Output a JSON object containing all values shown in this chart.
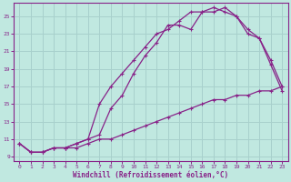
{
  "xlabel": "Windchill (Refroidissement éolien,°C)",
  "bg_color": "#c0e8e0",
  "grid_color": "#a8d0cc",
  "line_color": "#882288",
  "xlim": [
    -0.5,
    23.5
  ],
  "ylim": [
    8.5,
    26.5
  ],
  "xticks": [
    0,
    1,
    2,
    3,
    4,
    5,
    6,
    7,
    8,
    9,
    10,
    11,
    12,
    13,
    14,
    15,
    16,
    17,
    18,
    19,
    20,
    21,
    22,
    23
  ],
  "yticks": [
    9,
    11,
    13,
    15,
    17,
    19,
    21,
    23,
    25
  ],
  "curve1_x": [
    0,
    1,
    2,
    3,
    4,
    5,
    6,
    7,
    8,
    9,
    10,
    11,
    12,
    13,
    14,
    15,
    16,
    17,
    18,
    19,
    20,
    21,
    22,
    23
  ],
  "curve1_y": [
    10.5,
    9.5,
    9.5,
    10.0,
    10.0,
    10.0,
    10.5,
    11.0,
    11.0,
    11.5,
    12.0,
    12.5,
    13.0,
    13.5,
    14.0,
    14.5,
    15.0,
    15.5,
    15.5,
    16.0,
    16.0,
    16.5,
    16.5,
    17.0
  ],
  "curve2_x": [
    0,
    1,
    2,
    3,
    4,
    5,
    6,
    7,
    8,
    9,
    10,
    11,
    12,
    13,
    14,
    15,
    16,
    17,
    18,
    19,
    20,
    21,
    22,
    23
  ],
  "curve2_y": [
    10.5,
    9.5,
    9.5,
    10.0,
    10.0,
    10.5,
    11.0,
    11.5,
    14.5,
    16.0,
    18.5,
    20.5,
    22.0,
    24.0,
    24.0,
    23.5,
    25.5,
    25.5,
    26.0,
    25.0,
    23.0,
    22.5,
    20.0,
    17.0
  ],
  "curve3_x": [
    0,
    1,
    2,
    3,
    4,
    5,
    6,
    7,
    8,
    9,
    10,
    11,
    12,
    13,
    14,
    15,
    16,
    17,
    18,
    19,
    20,
    21,
    22,
    23
  ],
  "curve3_y": [
    10.5,
    9.5,
    9.5,
    10.0,
    10.0,
    10.5,
    11.0,
    15.0,
    17.0,
    18.5,
    20.0,
    21.5,
    23.0,
    23.5,
    24.5,
    25.5,
    25.5,
    26.0,
    25.5,
    25.0,
    23.5,
    22.5,
    19.5,
    16.5
  ]
}
